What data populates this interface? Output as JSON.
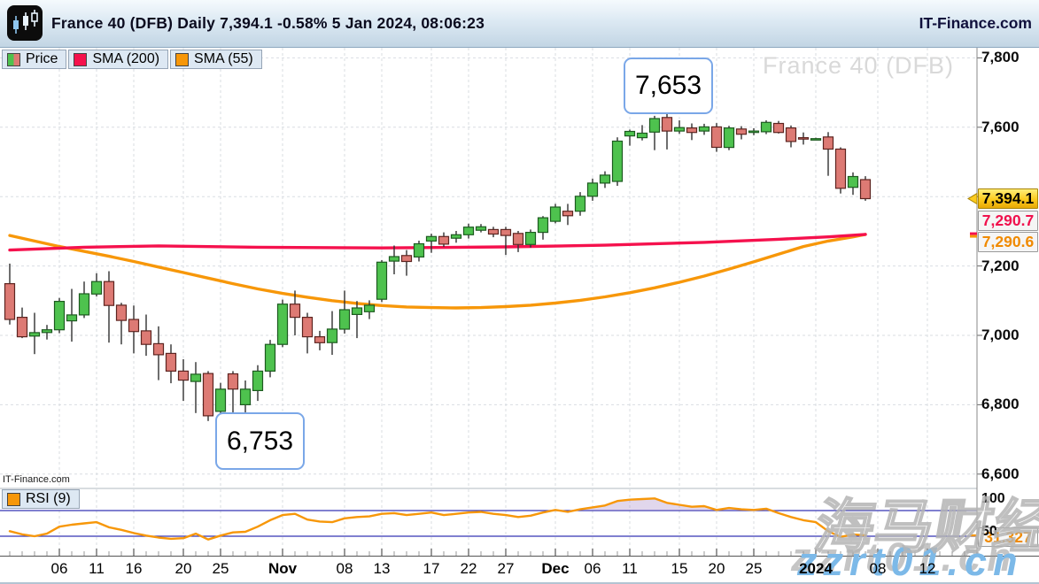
{
  "topbar": {
    "title": "France 40 (DFB) Daily 7,394.1 -0.58% 5 Jan 2024, 08:06:23",
    "brand": "IT-Finance.com",
    "logo_icon": "candlestick-logo-icon"
  },
  "legend": {
    "price_label": "Price",
    "sma200_label": "SMA (200)",
    "sma55_label": "SMA (55)",
    "rsi_label": "RSI (9)"
  },
  "watermarks": {
    "chart": "France 40 (DFB)",
    "site_small": "IT-Finance.com",
    "cn_text": "海马财经",
    "blue_text": "zzrt01.cn"
  },
  "badges": {
    "last_price": "7,394.1",
    "sma200_value": "7,290.7",
    "sma55_value": "7,290.6",
    "rsi_value": "31.327"
  },
  "colors": {
    "up_fill": "#4ec24e",
    "up_border": "#1d5a20",
    "down_fill": "#dd7a74",
    "down_border": "#5d2420",
    "wick": "#303030",
    "sma200": "#f5114d",
    "sma55": "#f79709",
    "rsi_line": "#f79709",
    "rsi_guide": "#3434b4",
    "grid": "#d9dde2",
    "rsi_fill": "rgba(168,140,200,0.35)",
    "badge_yellow": "#fccb1d",
    "annotation_border": "#7aa7e8"
  },
  "chart_data": {
    "type": "candlestick",
    "symbol": "France 40 (DFB)",
    "timeframe": "Daily",
    "last_price": 7394.1,
    "change_pct": "-0.58%",
    "timestamp": "5 Jan 2024, 08:06:23",
    "price_axis": {
      "visible_ticks": [
        {
          "t": "7,800",
          "v": 7800
        },
        {
          "t": "7,600",
          "v": 7600
        },
        {
          "t": "7,200",
          "v": 7200
        },
        {
          "t": "7,000",
          "v": 7000
        },
        {
          "t": "6,800",
          "v": 6800
        },
        {
          "t": "6,600",
          "v": 6600
        }
      ],
      "gridlines": [
        7800,
        7600,
        7400,
        7200,
        7000,
        6800,
        6600
      ],
      "ylim": [
        6556,
        7844
      ]
    },
    "x_labels": [
      {
        "t": "06",
        "i": 4
      },
      {
        "t": "11",
        "i": 7
      },
      {
        "t": "16",
        "i": 10
      },
      {
        "t": "20",
        "i": 14
      },
      {
        "t": "25",
        "i": 17
      },
      {
        "t": "Nov",
        "i": 22,
        "b": 1
      },
      {
        "t": "08",
        "i": 27
      },
      {
        "t": "13",
        "i": 30
      },
      {
        "t": "17",
        "i": 34
      },
      {
        "t": "22",
        "i": 37
      },
      {
        "t": "27",
        "i": 40
      },
      {
        "t": "Dec",
        "i": 44,
        "b": 1
      },
      {
        "t": "06",
        "i": 47
      },
      {
        "t": "11",
        "i": 50
      },
      {
        "t": "15",
        "i": 54
      },
      {
        "t": "20",
        "i": 57
      },
      {
        "t": "25",
        "i": 60
      },
      {
        "t": "2024",
        "i": 65,
        "b": 1
      },
      {
        "t": "08",
        "i": 70
      },
      {
        "t": "12",
        "i": 74
      }
    ],
    "candles": [
      [
        7149,
        7207,
        7031,
        7046
      ],
      [
        7052,
        7080,
        6992,
        6996
      ],
      [
        6998,
        7065,
        6946,
        7008
      ],
      [
        7008,
        7030,
        6988,
        7016
      ],
      [
        7016,
        7108,
        7006,
        7098
      ],
      [
        7042,
        7134,
        6982,
        7059
      ],
      [
        7059,
        7155,
        7050,
        7120
      ],
      [
        7119,
        7179,
        7112,
        7155
      ],
      [
        7155,
        7185,
        6979,
        7086
      ],
      [
        7087,
        7094,
        6974,
        7043
      ],
      [
        7046,
        7086,
        6948,
        7011
      ],
      [
        7013,
        7060,
        6941,
        6974
      ],
      [
        6976,
        7026,
        6871,
        6944
      ],
      [
        6948,
        6974,
        6862,
        6897
      ],
      [
        6897,
        6931,
        6811,
        6871
      ],
      [
        6867,
        6923,
        6776,
        6888
      ],
      [
        6890,
        6897,
        6753,
        6768
      ],
      [
        6781,
        6863,
        6760,
        6845
      ],
      [
        6889,
        6897,
        6776,
        6845
      ],
      [
        6800,
        6870,
        6768,
        6845
      ],
      [
        6841,
        6914,
        6811,
        6897
      ],
      [
        6897,
        6987,
        6879,
        6974
      ],
      [
        6974,
        7103,
        6966,
        7090
      ],
      [
        7090,
        7129,
        7000,
        7052
      ],
      [
        7052,
        7065,
        6948,
        6996
      ],
      [
        6996,
        7013,
        6957,
        6979
      ],
      [
        6979,
        7070,
        6944,
        7018
      ],
      [
        7018,
        7129,
        7005,
        7074
      ],
      [
        7060,
        7099,
        6992,
        7079
      ],
      [
        7068,
        7101,
        7047,
        7087
      ],
      [
        7104,
        7217,
        7096,
        7211
      ],
      [
        7214,
        7259,
        7176,
        7227
      ],
      [
        7230,
        7246,
        7172,
        7213
      ],
      [
        7226,
        7273,
        7213,
        7264
      ],
      [
        7272,
        7293,
        7238,
        7285
      ],
      [
        7285,
        7297,
        7255,
        7263
      ],
      [
        7280,
        7301,
        7267,
        7290
      ],
      [
        7290,
        7322,
        7279,
        7312
      ],
      [
        7303,
        7321,
        7297,
        7313
      ],
      [
        7305,
        7313,
        7283,
        7292
      ],
      [
        7305,
        7313,
        7232,
        7288
      ],
      [
        7294,
        7301,
        7240,
        7262
      ],
      [
        7262,
        7305,
        7253,
        7297
      ],
      [
        7297,
        7344,
        7276,
        7339
      ],
      [
        7329,
        7379,
        7323,
        7370
      ],
      [
        7358,
        7379,
        7318,
        7345
      ],
      [
        7358,
        7413,
        7345,
        7401
      ],
      [
        7401,
        7452,
        7388,
        7439
      ],
      [
        7439,
        7473,
        7425,
        7462
      ],
      [
        7444,
        7571,
        7431,
        7560
      ],
      [
        7575,
        7593,
        7547,
        7588
      ],
      [
        7570,
        7606,
        7562,
        7583
      ],
      [
        7586,
        7633,
        7534,
        7625
      ],
      [
        7628,
        7653,
        7536,
        7589
      ],
      [
        7589,
        7620,
        7581,
        7599
      ],
      [
        7598,
        7611,
        7563,
        7585
      ],
      [
        7589,
        7610,
        7578,
        7601
      ],
      [
        7601,
        7612,
        7529,
        7542
      ],
      [
        7542,
        7604,
        7534,
        7598
      ],
      [
        7595,
        7603,
        7565,
        7580
      ],
      [
        7585,
        7597,
        7577,
        7589
      ],
      [
        7587,
        7620,
        7580,
        7614
      ],
      [
        7611,
        7618,
        7582,
        7585
      ],
      [
        7598,
        7605,
        7542,
        7559
      ],
      [
        7570,
        7585,
        7550,
        7566
      ],
      [
        7567,
        7570,
        7564,
        7567
      ],
      [
        7572,
        7586,
        7460,
        7537
      ],
      [
        7537,
        7542,
        7409,
        7424
      ],
      [
        7427,
        7470,
        7405,
        7458
      ],
      [
        7449,
        7459,
        7388,
        7394.1
      ]
    ],
    "overlays": {
      "sma200": {
        "label": "SMA (200)",
        "last": 7290.7,
        "points": [
          [
            0,
            7246
          ],
          [
            6,
            7254
          ],
          [
            12,
            7258
          ],
          [
            20,
            7254
          ],
          [
            30,
            7252
          ],
          [
            40,
            7255
          ],
          [
            48,
            7260
          ],
          [
            56,
            7268
          ],
          [
            62,
            7277
          ],
          [
            66,
            7284
          ],
          [
            69,
            7291
          ]
        ]
      },
      "sma55": {
        "label": "SMA (55)",
        "last": 7290.6,
        "points": [
          [
            0,
            7288
          ],
          [
            2,
            7272
          ],
          [
            4,
            7256
          ],
          [
            6,
            7242
          ],
          [
            8,
            7228
          ],
          [
            10,
            7213
          ],
          [
            12,
            7197
          ],
          [
            14,
            7181
          ],
          [
            16,
            7165
          ],
          [
            18,
            7149
          ],
          [
            20,
            7134
          ],
          [
            22,
            7121
          ],
          [
            24,
            7110
          ],
          [
            26,
            7100
          ],
          [
            28,
            7092
          ],
          [
            30,
            7086
          ],
          [
            32,
            7082
          ],
          [
            34,
            7080
          ],
          [
            36,
            7079
          ],
          [
            38,
            7080
          ],
          [
            40,
            7083
          ],
          [
            42,
            7087
          ],
          [
            44,
            7093
          ],
          [
            46,
            7101
          ],
          [
            48,
            7111
          ],
          [
            50,
            7123
          ],
          [
            52,
            7137
          ],
          [
            54,
            7153
          ],
          [
            56,
            7171
          ],
          [
            58,
            7191
          ],
          [
            60,
            7212
          ],
          [
            62,
            7234
          ],
          [
            64,
            7256
          ],
          [
            66,
            7272
          ],
          [
            68,
            7284
          ],
          [
            69,
            7291
          ]
        ]
      }
    },
    "annotations": {
      "high": "7,653",
      "low": "6,753"
    },
    "rsi": {
      "label": "RSI (9)",
      "period": 9,
      "last": 31.327,
      "guides": [
        70,
        30
      ],
      "ticks": [
        {
          "t": "100",
          "v": 100
        },
        {
          "t": "50",
          "v": 50
        }
      ],
      "values": [
        38,
        33,
        30,
        34,
        45,
        48,
        50,
        52,
        44,
        40,
        35,
        31,
        28,
        26,
        27,
        34,
        25,
        31,
        36,
        37,
        45,
        55,
        63,
        65,
        56,
        53,
        52,
        58,
        60,
        61,
        65,
        66,
        63,
        65,
        67,
        63,
        65,
        67,
        68,
        65,
        63,
        60,
        62,
        67,
        71,
        68,
        72,
        75,
        78,
        85,
        87,
        88,
        89,
        82,
        79,
        76,
        77,
        71,
        74,
        72,
        71,
        73,
        66,
        60,
        55,
        52,
        38,
        29,
        33,
        31.327
      ]
    }
  }
}
